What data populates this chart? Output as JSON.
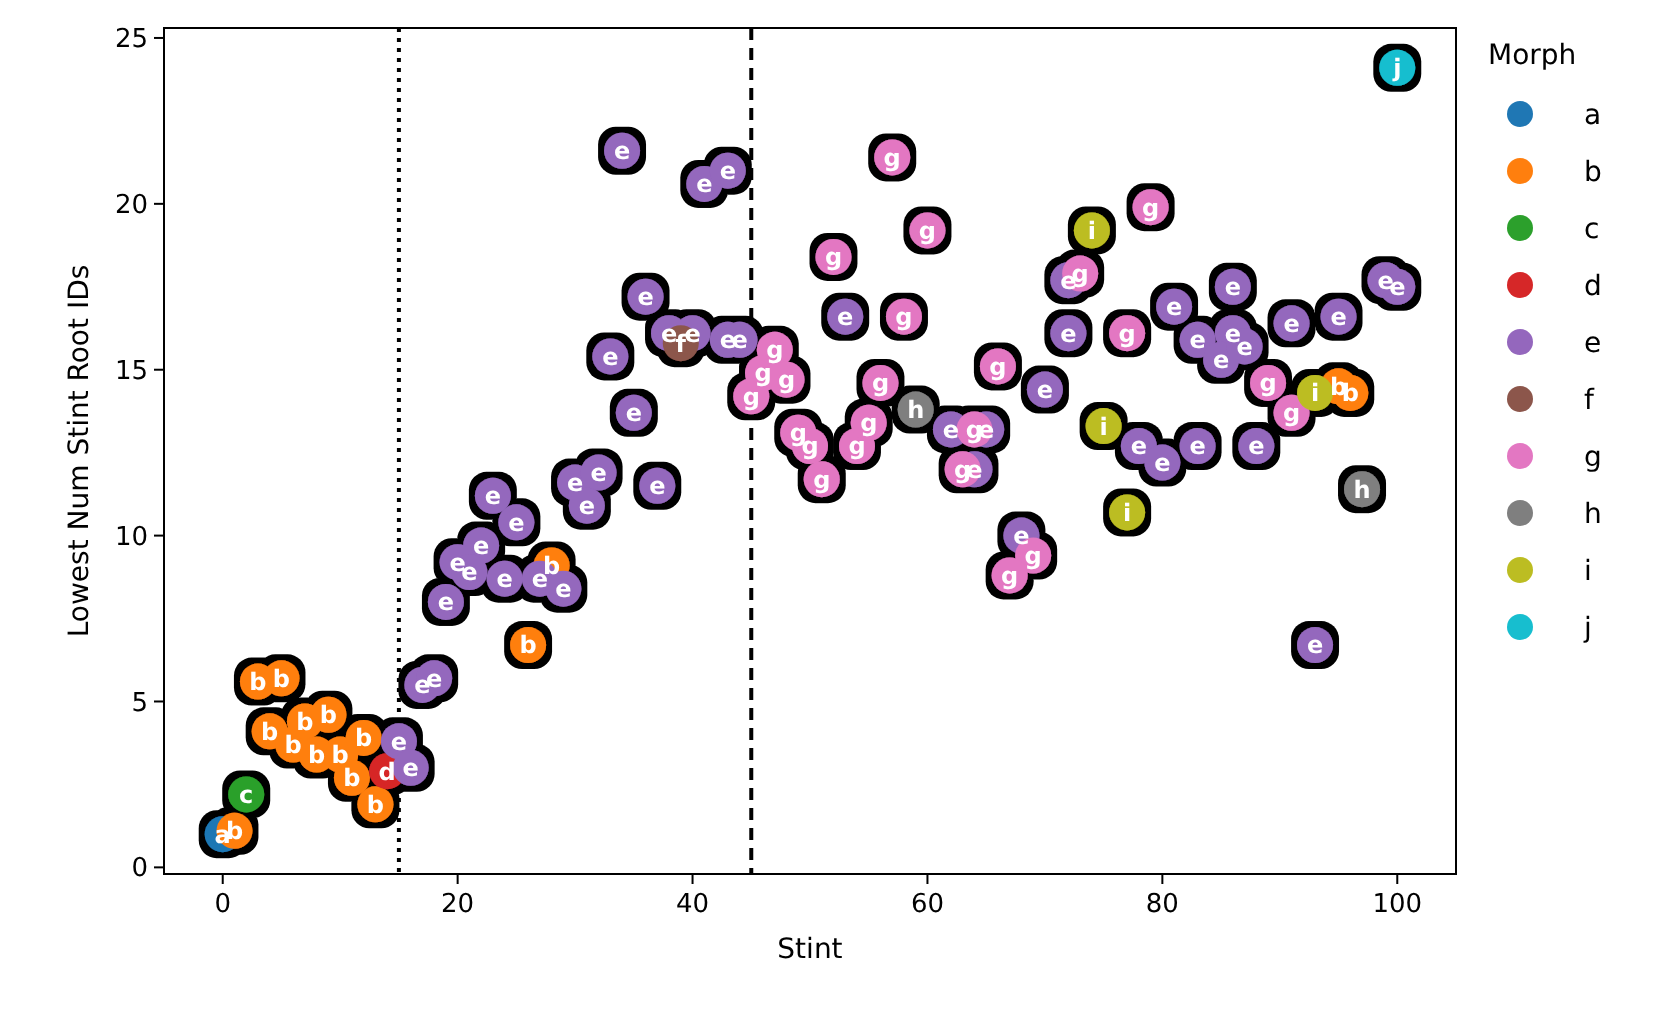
{
  "chart_data": {
    "type": "scatter",
    "xlabel": "Stint",
    "ylabel": "Lowest Num Stint Root IDs",
    "legend_title": "Morph",
    "legend": "right",
    "marker": "circle",
    "xlim": [
      -5,
      105
    ],
    "ylim": [
      -0.2,
      25.3
    ],
    "xticks": [
      0,
      20,
      40,
      60,
      80,
      100
    ],
    "yticks": [
      0,
      5,
      10,
      15,
      20,
      25
    ],
    "ref_lines": [
      {
        "axis": "x",
        "value": 15,
        "color": "#000000",
        "line_style": "dotted"
      },
      {
        "axis": "x",
        "value": 45,
        "color": "#000000",
        "line_style": "dashed"
      }
    ],
    "series": [
      {
        "name": "a",
        "color": "#1f77b4",
        "x": [
          0
        ],
        "values": [
          1.0
        ],
        "value_labels": [
          "a"
        ]
      },
      {
        "name": "b",
        "color": "#ff7f0e",
        "x": [
          1,
          3,
          5,
          4,
          6,
          7,
          8,
          9,
          10,
          11,
          12,
          13,
          28,
          26,
          95,
          96
        ],
        "values": [
          1.1,
          5.6,
          5.7,
          4.1,
          3.7,
          4.4,
          3.4,
          4.6,
          3.4,
          2.7,
          3.9,
          1.9,
          9.1,
          6.7,
          14.5,
          14.3
        ],
        "value_labels": [
          "b",
          "b",
          "b",
          "b",
          "b",
          "b",
          "b",
          "b",
          "b",
          "b",
          "b",
          "b",
          "b",
          "b",
          "b",
          "b"
        ]
      },
      {
        "name": "c",
        "color": "#2ca02c",
        "x": [
          2
        ],
        "values": [
          2.2
        ],
        "value_labels": [
          "c"
        ]
      },
      {
        "name": "d",
        "color": "#d62728",
        "x": [
          14
        ],
        "values": [
          2.9
        ],
        "value_labels": [
          "d"
        ]
      },
      {
        "name": "e",
        "color": "#9467bd",
        "x": [
          15,
          16,
          17,
          18,
          34,
          41,
          43,
          36,
          38,
          40,
          43,
          44,
          33,
          35,
          30,
          32,
          31,
          37,
          23,
          25,
          22,
          20,
          21,
          24,
          27,
          29,
          19,
          53,
          62,
          65,
          64,
          70,
          68,
          72,
          72,
          78,
          80,
          83,
          88,
          81,
          86,
          83,
          86,
          85,
          87,
          91,
          95,
          99,
          100,
          93
        ],
        "values": [
          3.8,
          3.0,
          5.5,
          5.7,
          21.6,
          20.6,
          21.0,
          17.2,
          16.1,
          16.1,
          15.9,
          15.9,
          15.4,
          13.7,
          11.6,
          11.9,
          10.9,
          11.5,
          11.2,
          10.4,
          9.7,
          9.2,
          8.9,
          8.7,
          8.7,
          8.4,
          8.0,
          16.6,
          13.2,
          13.2,
          12.0,
          14.4,
          10.0,
          17.7,
          16.1,
          12.7,
          12.2,
          12.7,
          12.7,
          16.9,
          17.5,
          15.9,
          16.1,
          15.3,
          15.7,
          16.4,
          16.6,
          17.7,
          17.5,
          6.7
        ],
        "value_labels": [
          "e",
          "e",
          "e",
          "e",
          "e",
          "e",
          "e",
          "e",
          "e",
          "e",
          "e",
          "e",
          "e",
          "e",
          "e",
          "e",
          "e",
          "e",
          "e",
          "e",
          "e",
          "e",
          "e",
          "e",
          "e",
          "e",
          "e",
          "e",
          "e",
          "e",
          "e",
          "e",
          "e",
          "e",
          "e",
          "e",
          "e",
          "e",
          "e",
          "e",
          "e",
          "e",
          "e",
          "e",
          "e",
          "e",
          "e",
          "e",
          "e",
          "e"
        ]
      },
      {
        "name": "f",
        "color": "#8c564b",
        "x": [
          39
        ],
        "values": [
          15.8
        ],
        "value_labels": [
          "f"
        ]
      },
      {
        "name": "g",
        "color": "#e377c2",
        "x": [
          57,
          60,
          52,
          58,
          47,
          46,
          48,
          45,
          49,
          50,
          51,
          54,
          55,
          56,
          64,
          63,
          66,
          69,
          67,
          79,
          73,
          77,
          89,
          91
        ],
        "values": [
          21.4,
          19.2,
          18.4,
          16.6,
          15.6,
          14.9,
          14.7,
          14.2,
          13.1,
          12.7,
          11.7,
          12.7,
          13.4,
          14.6,
          13.2,
          12.0,
          15.1,
          9.4,
          8.8,
          19.9,
          17.9,
          16.1,
          14.6,
          13.7
        ],
        "value_labels": [
          "g",
          "g",
          "g",
          "g",
          "g",
          "g",
          "g",
          "g",
          "g",
          "g",
          "g",
          "g",
          "g",
          "g",
          "g",
          "g",
          "g",
          "g",
          "g",
          "g",
          "g",
          "g",
          "g",
          "g"
        ]
      },
      {
        "name": "h",
        "color": "#7f7f7f",
        "x": [
          59,
          97
        ],
        "values": [
          13.8,
          11.4
        ],
        "value_labels": [
          "h",
          "h"
        ]
      },
      {
        "name": "i",
        "color": "#bcbd22",
        "x": [
          74,
          75,
          77,
          93
        ],
        "values": [
          19.2,
          13.3,
          10.7,
          14.3
        ],
        "value_labels": [
          "i",
          "i",
          "i",
          "i"
        ]
      },
      {
        "name": "j",
        "color": "#17becf",
        "x": [
          100
        ],
        "values": [
          24.1
        ],
        "value_labels": [
          "j"
        ]
      }
    ]
  }
}
